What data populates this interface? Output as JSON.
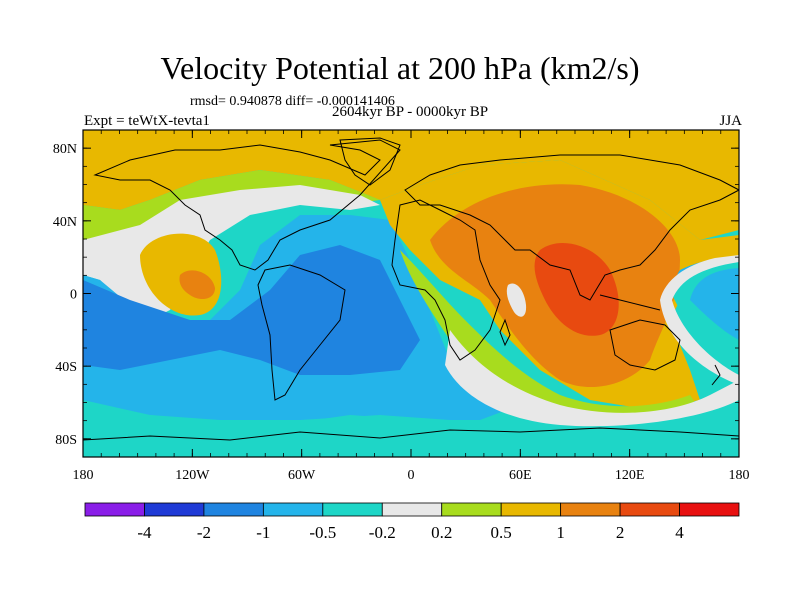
{
  "chart_data": {
    "type": "heatmap",
    "title": "Velocity Potential at 200 hPa (km2/s)",
    "stats_text": "rmsd= 0.940878 diff= -0.000141406",
    "subtitle": "2604kyr BP - 0000kyr BP",
    "left_label": "Expt = teWtX-tevta1",
    "right_label": "JJA",
    "x_ticks": [
      "180",
      "120W",
      "60W",
      "0",
      "60E",
      "120E",
      "180"
    ],
    "x_values": [
      -180,
      -120,
      -60,
      0,
      60,
      120,
      180
    ],
    "y_ticks": [
      "80N",
      "40N",
      "0",
      "40S",
      "80S"
    ],
    "y_values": [
      80,
      40,
      0,
      -40,
      -80
    ],
    "xlim": [
      -180,
      180
    ],
    "ylim": [
      -90,
      90
    ],
    "colorbar": {
      "labels": [
        "-4",
        "-2",
        "-1",
        "-0.5",
        "-0.2",
        "0.2",
        "0.5",
        "1",
        "2",
        "4"
      ],
      "colors": [
        "#8a1ee8",
        "#1f3bd6",
        "#1f84e0",
        "#24b4ea",
        "#1ed6c7",
        "#e8e8e8",
        "#a8dc1e",
        "#e8b800",
        "#e88210",
        "#e84a10",
        "#e81010"
      ]
    },
    "colors": {
      "ocean_neg_strong": "#1f84e0",
      "neg_mid": "#24b4ea",
      "neg_weak": "#1ed6c7",
      "neutral": "#e8e8e8",
      "pos_weak": "#a8dc1e",
      "pos_mid": "#e8b800",
      "pos_strong": "#e88210",
      "pos_max": "#e84a10"
    }
  }
}
